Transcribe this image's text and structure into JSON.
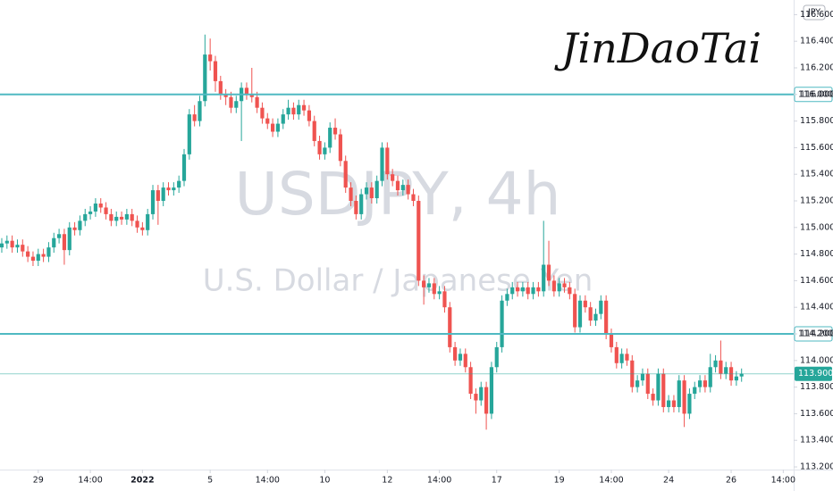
{
  "chart_data": {
    "type": "candlestick",
    "title": "USDJPY, 4h",
    "subtitle": "U.S. Dollar / Japanese Yen",
    "signature": "JinDaoTai",
    "currency": "JPY",
    "up_color": "#26a69a",
    "down_color": "#ef5350",
    "grid": false,
    "xlim": [
      -0.34,
      152
    ],
    "ylim": [
      113.18,
      116.71
    ],
    "xticks": [
      {
        "value": 7,
        "label": "29"
      },
      {
        "value": 17,
        "label": "14:00"
      },
      {
        "value": 27,
        "label": "2022",
        "bold": true
      },
      {
        "value": 40,
        "label": "5"
      },
      {
        "value": 51,
        "label": "14:00"
      },
      {
        "value": 62,
        "label": "10"
      },
      {
        "value": 74,
        "label": "12"
      },
      {
        "value": 84,
        "label": "14:00"
      },
      {
        "value": 95,
        "label": "17"
      },
      {
        "value": 107,
        "label": "19"
      },
      {
        "value": 117,
        "label": "14:00"
      },
      {
        "value": 128,
        "label": "24"
      },
      {
        "value": 140,
        "label": "26"
      },
      {
        "value": 150,
        "label": "14:00"
      }
    ],
    "yticks": [
      {
        "value": 113.2,
        "label": "113.200"
      },
      {
        "value": 113.4,
        "label": "113.400"
      },
      {
        "value": 113.6,
        "label": "113.600"
      },
      {
        "value": 113.8,
        "label": "113.800"
      },
      {
        "value": 114.0,
        "label": "114.000"
      },
      {
        "value": 114.2,
        "label": "114.200"
      },
      {
        "value": 114.4,
        "label": "114.400"
      },
      {
        "value": 114.6,
        "label": "114.600"
      },
      {
        "value": 114.8,
        "label": "114.800"
      },
      {
        "value": 115.0,
        "label": "115.000"
      },
      {
        "value": 115.2,
        "label": "115.200"
      },
      {
        "value": 115.4,
        "label": "115.400"
      },
      {
        "value": 115.6,
        "label": "115.600"
      },
      {
        "value": 115.8,
        "label": "115.800"
      },
      {
        "value": 116.0,
        "label": "116.000"
      },
      {
        "value": 116.2,
        "label": "116.200"
      },
      {
        "value": 116.4,
        "label": "116.400"
      },
      {
        "value": 116.6,
        "label": "116.600"
      }
    ],
    "hlines": [
      {
        "value": 116.0,
        "label": "116.000",
        "color": "#4fb9c2"
      },
      {
        "value": 114.2,
        "label": "114.200",
        "color": "#4fb9c2"
      }
    ],
    "last_price": {
      "value": 113.9,
      "label": "113.900",
      "color": "#26a69a"
    },
    "open": [
      114.85,
      114.88,
      114.9,
      114.85,
      114.87,
      114.82,
      114.78,
      114.75,
      114.8,
      114.78,
      114.85,
      114.92,
      114.95,
      114.83,
      115.0,
      114.98,
      115.05,
      115.1,
      115.12,
      115.18,
      115.15,
      115.1,
      115.05,
      115.08,
      115.06,
      115.1,
      115.05,
      115.0,
      114.98,
      115.1,
      115.28,
      115.2,
      115.3,
      115.28,
      115.3,
      115.35,
      115.55,
      115.85,
      115.8,
      115.95,
      116.3,
      116.25,
      116.1,
      116.0,
      115.98,
      115.9,
      115.95,
      116.05,
      116.0,
      115.98,
      115.9,
      115.82,
      115.78,
      115.72,
      115.78,
      115.85,
      115.9,
      115.85,
      115.92,
      115.88,
      115.8,
      115.65,
      115.55,
      115.6,
      115.75,
      115.7,
      115.5,
      115.3,
      115.2,
      115.1,
      115.25,
      115.3,
      115.22,
      115.35,
      115.6,
      115.4,
      115.35,
      115.28,
      115.32,
      115.25,
      115.2,
      114.6,
      114.55,
      114.58,
      114.5,
      114.52,
      114.4,
      114.1,
      114.0,
      114.05,
      113.95,
      113.75,
      113.7,
      113.8,
      113.6,
      113.95,
      114.1,
      114.45,
      114.5,
      114.55,
      114.52,
      114.55,
      114.5,
      114.55,
      114.52,
      114.72,
      114.6,
      114.52,
      114.58,
      114.55,
      114.5,
      114.25,
      114.45,
      114.4,
      114.3,
      114.35,
      114.45,
      114.2,
      114.1,
      113.98,
      114.05,
      114.0,
      113.8,
      113.85,
      113.9,
      113.75,
      113.7,
      113.9,
      113.65,
      113.7,
      113.65,
      113.85,
      113.6,
      113.75,
      113.8,
      113.85,
      113.8,
      113.95,
      114.0,
      113.9,
      113.95,
      113.85,
      113.88
    ],
    "high": [
      114.92,
      114.94,
      114.94,
      114.91,
      114.91,
      114.86,
      114.82,
      114.84,
      114.84,
      114.89,
      114.96,
      114.99,
      114.99,
      115.04,
      115.04,
      115.09,
      115.14,
      115.16,
      115.22,
      115.22,
      115.19,
      115.14,
      115.12,
      115.12,
      115.14,
      115.14,
      115.09,
      115.04,
      115.14,
      115.32,
      115.32,
      115.34,
      115.34,
      115.34,
      115.39,
      115.59,
      115.89,
      115.92,
      115.99,
      116.45,
      116.42,
      116.29,
      116.14,
      116.04,
      116.02,
      115.99,
      116.09,
      116.09,
      116.2,
      116.02,
      115.94,
      115.86,
      115.82,
      115.82,
      115.89,
      115.96,
      115.94,
      115.96,
      115.96,
      115.92,
      115.84,
      115.69,
      115.64,
      115.79,
      115.82,
      115.74,
      115.54,
      115.34,
      115.24,
      115.29,
      115.34,
      115.34,
      115.39,
      115.64,
      115.64,
      115.44,
      115.39,
      115.36,
      115.36,
      115.29,
      115.24,
      114.64,
      114.62,
      114.62,
      114.56,
      114.56,
      114.44,
      114.14,
      114.09,
      114.09,
      113.99,
      113.79,
      113.84,
      113.84,
      113.99,
      114.14,
      114.49,
      114.54,
      114.59,
      114.59,
      114.59,
      114.59,
      114.59,
      114.59,
      115.05,
      114.9,
      114.64,
      114.62,
      114.62,
      114.59,
      114.54,
      114.49,
      114.49,
      114.44,
      114.39,
      114.49,
      114.49,
      114.24,
      114.14,
      114.09,
      114.09,
      114.04,
      113.89,
      113.94,
      113.94,
      113.79,
      113.94,
      113.94,
      113.74,
      113.74,
      113.89,
      113.89,
      113.79,
      113.84,
      113.89,
      113.89,
      114.05,
      114.04,
      114.15,
      113.99,
      113.99,
      113.92,
      113.94
    ],
    "low": [
      114.81,
      114.84,
      114.81,
      114.81,
      114.78,
      114.74,
      114.71,
      114.71,
      114.74,
      114.74,
      114.81,
      114.88,
      114.72,
      114.79,
      114.94,
      114.94,
      115.01,
      115.06,
      115.08,
      115.11,
      115.06,
      115.01,
      115.01,
      115.02,
      115.02,
      115.01,
      114.96,
      114.94,
      114.94,
      115.06,
      115.02,
      115.16,
      115.24,
      115.24,
      115.26,
      115.31,
      115.51,
      115.76,
      115.76,
      115.91,
      116.18,
      116.02,
      115.96,
      115.92,
      115.86,
      115.86,
      115.65,
      115.96,
      115.94,
      115.86,
      115.78,
      115.74,
      115.68,
      115.68,
      115.74,
      115.81,
      115.81,
      115.81,
      115.84,
      115.76,
      115.61,
      115.51,
      115.51,
      115.56,
      115.66,
      115.46,
      115.26,
      115.16,
      115.06,
      115.06,
      115.21,
      115.18,
      115.18,
      115.31,
      115.36,
      115.31,
      115.24,
      115.24,
      115.21,
      115.16,
      114.56,
      114.42,
      114.51,
      114.46,
      114.46,
      114.36,
      114.06,
      113.96,
      113.96,
      113.91,
      113.71,
      113.6,
      113.66,
      113.48,
      113.56,
      113.91,
      114.06,
      114.41,
      114.46,
      114.48,
      114.48,
      114.46,
      114.46,
      114.48,
      114.48,
      114.56,
      114.48,
      114.48,
      114.51,
      114.46,
      114.21,
      114.21,
      114.36,
      114.26,
      114.26,
      114.31,
      114.16,
      114.06,
      113.94,
      113.94,
      113.96,
      113.76,
      113.76,
      113.81,
      113.71,
      113.66,
      113.66,
      113.61,
      113.61,
      113.61,
      113.61,
      113.5,
      113.56,
      113.71,
      113.76,
      113.76,
      113.76,
      113.91,
      113.86,
      113.86,
      113.81,
      113.81,
      113.84
    ],
    "close": [
      114.88,
      114.9,
      114.85,
      114.87,
      114.82,
      114.78,
      114.75,
      114.8,
      114.78,
      114.85,
      114.92,
      114.95,
      114.83,
      115.0,
      114.98,
      115.05,
      115.1,
      115.12,
      115.18,
      115.15,
      115.1,
      115.05,
      115.08,
      115.06,
      115.1,
      115.05,
      115.0,
      114.98,
      115.1,
      115.28,
      115.2,
      115.3,
      115.28,
      115.3,
      115.35,
      115.55,
      115.85,
      115.8,
      115.95,
      116.3,
      116.25,
      116.1,
      116.0,
      115.98,
      115.9,
      115.95,
      116.05,
      116.0,
      115.98,
      115.9,
      115.82,
      115.78,
      115.72,
      115.78,
      115.85,
      115.9,
      115.85,
      115.92,
      115.88,
      115.8,
      115.65,
      115.55,
      115.6,
      115.75,
      115.7,
      115.5,
      115.3,
      115.2,
      115.1,
      115.25,
      115.3,
      115.22,
      115.35,
      115.6,
      115.4,
      115.35,
      115.28,
      115.32,
      115.25,
      115.2,
      114.6,
      114.55,
      114.58,
      114.5,
      114.52,
      114.4,
      114.1,
      114.0,
      114.05,
      113.95,
      113.75,
      113.7,
      113.8,
      113.6,
      113.95,
      114.1,
      114.45,
      114.5,
      114.55,
      114.52,
      114.55,
      114.5,
      114.55,
      114.52,
      114.72,
      114.6,
      114.52,
      114.58,
      114.55,
      114.5,
      114.25,
      114.45,
      114.4,
      114.3,
      114.35,
      114.45,
      114.2,
      114.1,
      113.98,
      114.05,
      114.0,
      113.8,
      113.85,
      113.9,
      113.75,
      113.7,
      113.9,
      113.65,
      113.7,
      113.65,
      113.85,
      113.6,
      113.75,
      113.8,
      113.85,
      113.8,
      113.95,
      114.0,
      113.9,
      113.95,
      113.85,
      113.88,
      113.9
    ]
  }
}
